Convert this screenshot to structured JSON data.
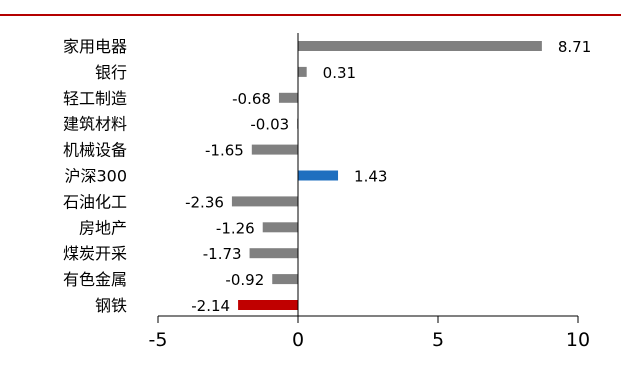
{
  "colors": {
    "top_rule": "#b40000",
    "default_bar": "#808080",
    "highlight_index": "#1f6fbf",
    "highlight_sector": "#c00000",
    "axis": "#000000",
    "text": "#000000"
  },
  "chart_data": {
    "type": "bar",
    "orientation": "horizontal",
    "categories": [
      "家用电器",
      "银行",
      "轻工制造",
      "建筑材料",
      "机械设备",
      "沪深300",
      "石油化工",
      "房地产",
      "煤炭开采",
      "有色金属",
      "钢铁"
    ],
    "values": [
      8.71,
      0.31,
      -0.68,
      -0.03,
      -1.65,
      1.43,
      -2.36,
      -1.26,
      -1.73,
      -0.92,
      -2.14
    ],
    "value_labels": [
      "8.71",
      "0.31",
      "-0.68",
      "-0.03",
      "-1.65",
      "1.43",
      "-2.36",
      "-1.26",
      "-1.73",
      "-0.92",
      "-2.14"
    ],
    "bar_colors": [
      "#808080",
      "#808080",
      "#808080",
      "#808080",
      "#808080",
      "#1f6fbf",
      "#808080",
      "#808080",
      "#808080",
      "#808080",
      "#c00000"
    ],
    "xlim": [
      -5,
      10
    ],
    "xticks": [
      -5,
      0,
      5,
      10
    ],
    "xtick_labels": [
      "-5",
      "0",
      "5",
      "10"
    ],
    "grid": false,
    "legend": "none"
  }
}
